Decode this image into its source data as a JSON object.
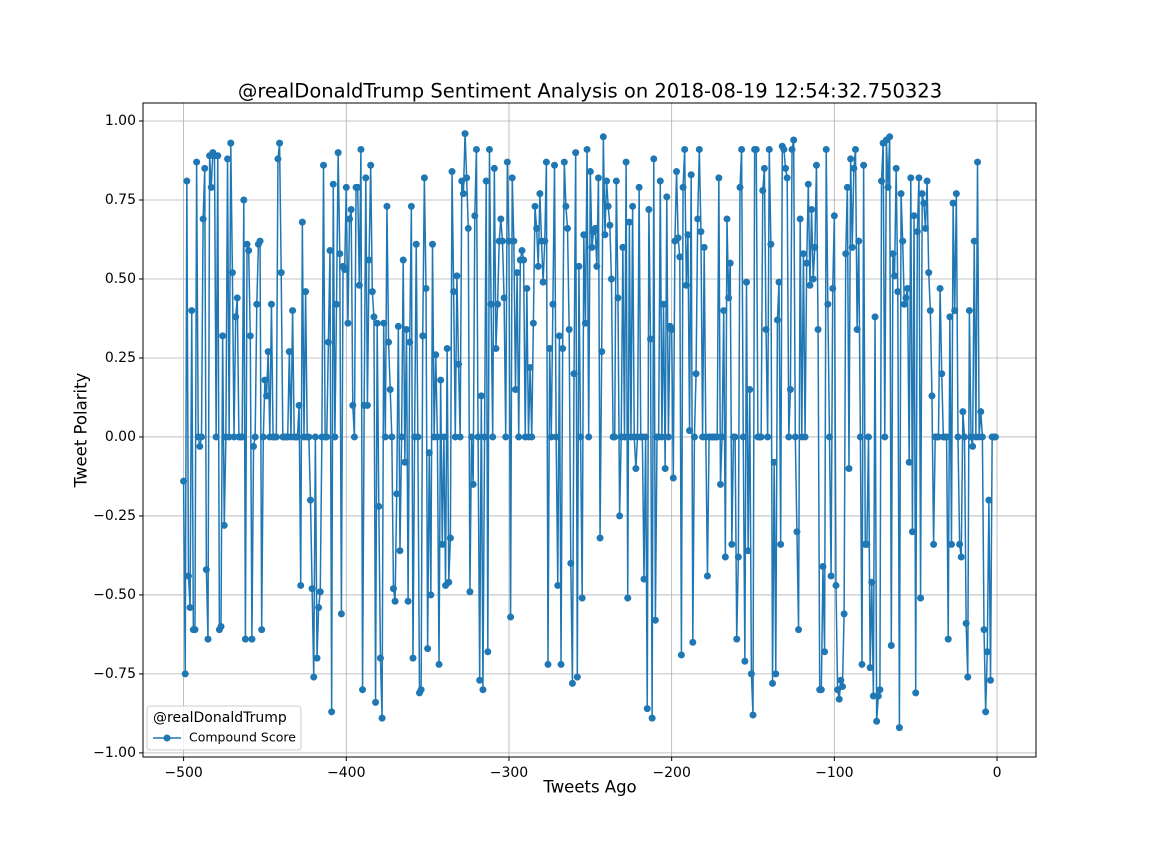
{
  "chart_data": {
    "type": "line",
    "title": "@realDonaldTrump Sentiment Analysis on 2018-08-19 12:54:32.750323",
    "xlabel": "Tweets Ago",
    "ylabel": "Tweet Polarity",
    "legend_title": "@realDonaldTrump",
    "legend": "lower left",
    "grid": true,
    "xlim": [
      -524.95,
      23.95
    ],
    "xticks": [
      {
        "value": -500,
        "label": "−500"
      },
      {
        "value": -400,
        "label": "−400"
      },
      {
        "value": -300,
        "label": "−300"
      },
      {
        "value": -200,
        "label": "−200"
      },
      {
        "value": -100,
        "label": "−100"
      },
      0
    ],
    "ylim": [
      -1.013,
      1.057
    ],
    "yticks": [
      {
        "value": -1,
        "label": "−1.00"
      },
      {
        "value": -0.75,
        "label": "−0.75"
      },
      {
        "value": -0.5,
        "label": "−0.50"
      },
      {
        "value": -0.25,
        "label": "−0.25"
      },
      {
        "value": 0,
        "label": "0.00"
      },
      {
        "value": 0.25,
        "label": "0.25"
      },
      {
        "value": 0.5,
        "label": "0.50"
      },
      {
        "value": 0.75,
        "label": "0.75"
      },
      {
        "value": 1,
        "label": "1.00"
      }
    ],
    "x": [
      -500,
      -499,
      -498,
      -497,
      -496,
      -495,
      -494,
      -493,
      -492,
      -491,
      -490,
      -489,
      -488,
      -487,
      -486,
      -485,
      -484,
      -483,
      -482,
      -481,
      -480,
      -479,
      -478,
      -477,
      -476,
      -475,
      -474,
      -473,
      -472,
      -471,
      -470,
      -469,
      -468,
      -467,
      -466,
      -465,
      -464,
      -463,
      -462,
      -461,
      -460,
      -459,
      -458,
      -457,
      -456,
      -455,
      -454,
      -453,
      -452,
      -451,
      -450,
      -449,
      -448,
      -447,
      -446,
      -445,
      -444,
      -443,
      -442,
      -441,
      -440,
      -439,
      -438,
      -437,
      -436,
      -435,
      -434,
      -433,
      -432,
      -431,
      -430,
      -429,
      -428,
      -427,
      -426,
      -425,
      -424,
      -423,
      -422,
      -421,
      -420,
      -419,
      -418,
      -417,
      -416,
      -415,
      -414,
      -413,
      -412,
      -411,
      -410,
      -409,
      -408,
      -407,
      -406,
      -405,
      -404,
      -403,
      -402,
      -401,
      -400,
      -399,
      -398,
      -397,
      -396,
      -395,
      -394,
      -393,
      -392,
      -391,
      -390,
      -389,
      -388,
      -387,
      -386,
      -385,
      -384,
      -383,
      -382,
      -381,
      -380,
      -379,
      -378,
      -377,
      -376,
      -375,
      -374,
      -373,
      -372,
      -371,
      -370,
      -369,
      -368,
      -367,
      -366,
      -365,
      -364,
      -363,
      -362,
      -361,
      -360,
      -359,
      -358,
      -357,
      -356,
      -355,
      -354,
      -353,
      -352,
      -351,
      -350,
      -349,
      -348,
      -347,
      -346,
      -345,
      -344,
      -343,
      -342,
      -341,
      -340,
      -339,
      -338,
      -337,
      -336,
      -335,
      -334,
      -333,
      -332,
      -331,
      -330,
      -329,
      -328,
      -327,
      -326,
      -325,
      -324,
      -323,
      -322,
      -321,
      -320,
      -319,
      -318,
      -317,
      -316,
      -315,
      -314,
      -313,
      -312,
      -311,
      -310,
      -309,
      -308,
      -307,
      -306,
      -305,
      -304,
      -303,
      -302,
      -301,
      -300,
      -299,
      -298,
      -297,
      -296,
      -295,
      -294,
      -293,
      -292,
      -291,
      -290,
      -289,
      -288,
      -287,
      -286,
      -285,
      -284,
      -283,
      -282,
      -281,
      -280,
      -279,
      -278,
      -277,
      -276,
      -275,
      -274,
      -273,
      -272,
      -271,
      -270,
      -269,
      -268,
      -267,
      -266,
      -265,
      -264,
      -263,
      -262,
      -261,
      -260,
      -259,
      -258,
      -257,
      -256,
      -255,
      -254,
      -253,
      -252,
      -251,
      -250,
      -249,
      -248,
      -247,
      -246,
      -245,
      -244,
      -243,
      -242,
      -241,
      -240,
      -239,
      -238,
      -237,
      -236,
      -235,
      -234,
      -233,
      -232,
      -231,
      -230,
      -229,
      -228,
      -227,
      -226,
      -225,
      -224,
      -223,
      -222,
      -221,
      -220,
      -219,
      -218,
      -217,
      -216,
      -215,
      -214,
      -213,
      -212,
      -211,
      -210,
      -209,
      -208,
      -207,
      -206,
      -205,
      -204,
      -203,
      -202,
      -201,
      -200,
      -199,
      -198,
      -197,
      -196,
      -195,
      -194,
      -193,
      -192,
      -191,
      -190,
      -189,
      -188,
      -187,
      -186,
      -185,
      -184,
      -183,
      -182,
      -181,
      -180,
      -179,
      -178,
      -177,
      -176,
      -175,
      -174,
      -173,
      -172,
      -171,
      -170,
      -169,
      -168,
      -167,
      -166,
      -165,
      -164,
      -163,
      -162,
      -161,
      -160,
      -159,
      -158,
      -157,
      -156,
      -155,
      -154,
      -153,
      -152,
      -151,
      -150,
      -149,
      -148,
      -147,
      -146,
      -145,
      -144,
      -143,
      -142,
      -141,
      -140,
      -139,
      -138,
      -137,
      -136,
      -135,
      -134,
      -133,
      -132,
      -131,
      -130,
      -129,
      -128,
      -127,
      -126,
      -125,
      -124,
      -123,
      -122,
      -121,
      -120,
      -119,
      -118,
      -117,
      -116,
      -115,
      -114,
      -113,
      -112,
      -111,
      -110,
      -109,
      -108,
      -107,
      -106,
      -105,
      -104,
      -103,
      -102,
      -101,
      -100,
      -99,
      -98,
      -97,
      -96,
      -95,
      -94,
      -93,
      -92,
      -91,
      -90,
      -89,
      -88,
      -87,
      -86,
      -85,
      -84,
      -83,
      -82,
      -81,
      -80,
      -79,
      -78,
      -77,
      -76,
      -75,
      -74,
      -73,
      -72,
      -71,
      -70,
      -69,
      -68,
      -67,
      -66,
      -65,
      -64,
      -63,
      -62,
      -61,
      -60,
      -59,
      -58,
      -57,
      -56,
      -55,
      -54,
      -53,
      -52,
      -51,
      -50,
      -49,
      -48,
      -47,
      -46,
      -45,
      -44,
      -43,
      -42,
      -41,
      -40,
      -39,
      -38,
      -37,
      -36,
      -35,
      -34,
      -33,
      -32,
      -31,
      -30,
      -29,
      -28,
      -27,
      -26,
      -25,
      -24,
      -23,
      -22,
      -21,
      -20,
      -19,
      -18,
      -17,
      -16,
      -15,
      -14,
      -13,
      -12,
      -11,
      -10,
      -9,
      -8,
      -7,
      -6,
      -5,
      -4,
      -3,
      -2,
      -1
    ],
    "series": [
      {
        "name": "Compound Score",
        "color": "#1f77b4",
        "values": [
          -0.14,
          -0.75,
          0.81,
          -0.44,
          -0.54,
          0.4,
          -0.61,
          -0.61,
          0.87,
          0,
          -0.03,
          0,
          0.69,
          0.85,
          -0.42,
          -0.64,
          0.89,
          0.79,
          0.9,
          0.89,
          0,
          0.89,
          -0.61,
          -0.6,
          0.32,
          -0.28,
          0,
          0.88,
          0,
          0.93,
          0.52,
          0,
          0.38,
          0.44,
          0,
          0,
          0,
          0.75,
          -0.64,
          0.61,
          0.59,
          0.32,
          -0.64,
          -0.03,
          0,
          0.42,
          0.61,
          0.62,
          -0.61,
          0,
          0.18,
          0.13,
          0.27,
          0,
          0.42,
          0,
          0,
          0,
          0.88,
          0.93,
          0.52,
          0,
          0,
          0,
          0,
          0.27,
          0,
          0.4,
          0,
          0,
          0,
          0.1,
          -0.47,
          0.68,
          0,
          0.46,
          0,
          0,
          -0.2,
          -0.48,
          -0.76,
          0,
          -0.7,
          -0.54,
          -0.49,
          0,
          0.86,
          0,
          0,
          0.3,
          0.59,
          -0.87,
          0.8,
          0,
          0.42,
          0.9,
          0.58,
          -0.56,
          0.54,
          0.53,
          0.79,
          0.36,
          0.69,
          0.72,
          0.1,
          0,
          0.79,
          0.79,
          0.48,
          0.91,
          -0.8,
          0.1,
          0.82,
          0.1,
          0.56,
          0.86,
          0.46,
          0.38,
          -0.84,
          0.36,
          -0.22,
          -0.7,
          -0.89,
          0.36,
          0,
          0.73,
          0.3,
          0.15,
          0,
          -0.48,
          -0.52,
          -0.18,
          0.35,
          -0.36,
          0,
          0.56,
          -0.08,
          0.34,
          -0.52,
          0.3,
          0.73,
          -0.7,
          0,
          0.61,
          0,
          -0.81,
          -0.8,
          0.32,
          0.82,
          0.47,
          -0.67,
          -0.05,
          -0.5,
          0.61,
          0,
          0.26,
          0,
          -0.72,
          0.18,
          -0.34,
          0,
          -0.47,
          0.28,
          -0.46,
          -0.32,
          0.84,
          0.46,
          0,
          0.51,
          0.23,
          0,
          0.81,
          0.77,
          0.96,
          0.82,
          0.66,
          -0.49,
          0,
          -0.15,
          0.7,
          0.91,
          0,
          -0.77,
          0.13,
          -0.8,
          0,
          0.81,
          -0.68,
          0.91,
          0.42,
          0,
          0.85,
          0.28,
          0.42,
          0.62,
          0.69,
          0.62,
          0.44,
          0,
          0.87,
          0.62,
          -0.57,
          0.82,
          0.62,
          0.15,
          0.52,
          0,
          0.56,
          0.59,
          0.56,
          0,
          0.47,
          0,
          0.22,
          0,
          0.36,
          0.73,
          0.66,
          0.54,
          0.77,
          0.62,
          0.49,
          0.62,
          0.87,
          -0.72,
          0.28,
          0,
          0.42,
          0.86,
          0,
          -0.47,
          0.32,
          -0.72,
          0.28,
          0.87,
          0.73,
          0.66,
          0.34,
          -0.4,
          -0.78,
          0.2,
          0.9,
          -0.76,
          0.54,
          0,
          -0.51,
          0.64,
          0.36,
          0.91,
          0,
          0.84,
          0.6,
          0.65,
          0.66,
          0.54,
          0.82,
          -0.32,
          0.27,
          0.95,
          0.64,
          0.81,
          0.73,
          0.67,
          0.5,
          0,
          0,
          0.81,
          0.44,
          -0.25,
          0,
          0.6,
          0,
          0.87,
          -0.51,
          0.68,
          0,
          0.73,
          0,
          -0.1,
          0,
          0.79,
          0,
          0,
          -0.45,
          0,
          -0.86,
          0.72,
          0.31,
          -0.89,
          0.88,
          -0.58,
          0,
          0,
          0.81,
          0,
          0.42,
          -0.1,
          0.76,
          0,
          0.35,
          0.34,
          -0.13,
          0.62,
          0.84,
          0.63,
          0.57,
          -0.69,
          0.79,
          0.91,
          0.48,
          0.64,
          0.02,
          0.83,
          -0.65,
          0,
          0.2,
          0.69,
          0.91,
          0.65,
          0,
          0.6,
          0,
          -0.44,
          0,
          0,
          0,
          0,
          0,
          0,
          0.82,
          -0.15,
          0,
          0.4,
          -0.38,
          0.69,
          0.44,
          0.55,
          -0.34,
          0,
          0,
          -0.64,
          -0.38,
          0.79,
          0.91,
          0,
          -0.71,
          0.49,
          -0.36,
          0.15,
          -0.75,
          -0.88,
          0.91,
          0.91,
          0,
          0,
          0,
          0.78,
          0.85,
          0.34,
          0,
          0.91,
          0.61,
          -0.78,
          -0.08,
          -0.75,
          0.37,
          0.49,
          -0.34,
          0.92,
          0.91,
          0.85,
          0.82,
          0,
          0.15,
          0.91,
          0.94,
          0,
          -0.3,
          -0.61,
          0.69,
          0,
          0.58,
          0,
          0.55,
          0.8,
          0.48,
          0.72,
          0.5,
          0.6,
          0.86,
          0.34,
          -0.8,
          -0.8,
          -0.41,
          -0.68,
          0.91,
          0.42,
          0,
          -0.44,
          0.47,
          0.7,
          -0.47,
          -0.8,
          -0.83,
          -0.77,
          -0.79,
          -0.56,
          0.58,
          0.79,
          -0.1,
          0.88,
          0.6,
          0.85,
          0.91,
          0.34,
          0.62,
          0,
          -0.72,
          0.86,
          -0.34,
          -0.34,
          0,
          -0.73,
          -0.46,
          -0.82,
          0.38,
          -0.9,
          -0.82,
          -0.8,
          0.81,
          0.93,
          0,
          0.94,
          0.79,
          0.95,
          -0.66,
          0.58,
          0.51,
          0.85,
          0.46,
          -0.92,
          0.77,
          0.62,
          0.42,
          0.44,
          0.47,
          -0.08,
          0.82,
          -0.3,
          0.7,
          -0.81,
          0.65,
          0.82,
          -0.51,
          0.77,
          0.74,
          0.66,
          0.81,
          0.52,
          0.4,
          0.13,
          -0.34,
          0,
          0,
          0,
          0.47,
          0.2,
          0,
          0,
          0,
          -0.64,
          0.38,
          -0.34,
          0.74,
          0.4,
          0.77,
          0,
          -0.34,
          -0.38,
          0.08,
          0,
          -0.59,
          -0.76,
          0.4,
          0,
          -0.03,
          0.62,
          0,
          0.87,
          0,
          0.08,
          0,
          -0.61,
          -0.87,
          -0.68,
          -0.2,
          -0.77,
          0,
          0,
          0
        ]
      }
    ]
  }
}
